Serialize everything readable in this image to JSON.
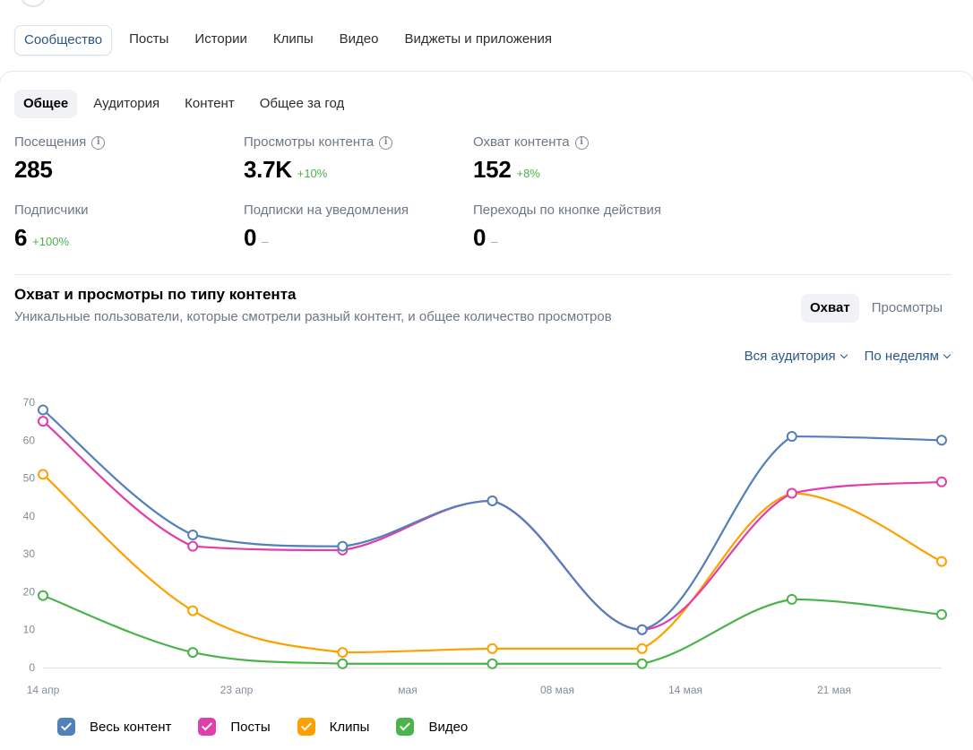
{
  "top_tabs": [
    "Сообщество",
    "Посты",
    "Истории",
    "Клипы",
    "Видео",
    "Виджеты и приложения"
  ],
  "sub_tabs": [
    "Общее",
    "Аудитория",
    "Контент",
    "Общее за год"
  ],
  "metrics": [
    {
      "label": "Посещения",
      "value": "285",
      "delta": "",
      "info": true
    },
    {
      "label": "Просмотры контента",
      "value": "3.7K",
      "delta": "+10%",
      "info": true
    },
    {
      "label": "Охват контента",
      "value": "152",
      "delta": "+8%",
      "info": true
    },
    {
      "label": "Подписчики",
      "value": "6",
      "delta": "+100%",
      "info": false
    },
    {
      "label": "Подписки на уведомления",
      "value": "0",
      "delta": "–",
      "info": false
    },
    {
      "label": "Переходы по кнопке действия",
      "value": "0",
      "delta": "–",
      "info": false
    }
  ],
  "chart_section": {
    "title": "Охват и просмотры по типу контента",
    "subtitle": "Уникальные пользователи, которые смотрели разный контент, и общее количество просмотров",
    "mode_buttons": [
      "Охват",
      "Просмотры"
    ],
    "audience_filter": "Вся аудитория",
    "period_filter": "По неделям"
  },
  "colors": {
    "all": "#5181b8",
    "posts": "#e03fab",
    "clips": "#ffa000",
    "video": "#4bb34b",
    "accent": "#2a5885"
  },
  "chart_data": {
    "type": "line",
    "x_tick_labels": [
      "14 апр",
      "23 апр",
      "мая",
      "08 мая",
      "14 мая",
      "21 мая"
    ],
    "ylim": [
      0,
      70
    ],
    "yticks": [
      0,
      10,
      20,
      30,
      40,
      50,
      60,
      70
    ],
    "grid": false,
    "legend_position": "bottom-left",
    "series": [
      {
        "name": "Весь контент",
        "color": "#5181b8",
        "values": [
          68,
          35,
          32,
          44,
          10,
          61,
          60
        ]
      },
      {
        "name": "Посты",
        "color": "#e03fab",
        "values": [
          65,
          32,
          31,
          44,
          10,
          46,
          49
        ]
      },
      {
        "name": "Клипы",
        "color": "#ffa000",
        "values": [
          51,
          15,
          4,
          5,
          5,
          46,
          28
        ]
      },
      {
        "name": "Видео",
        "color": "#4bb34b",
        "values": [
          19,
          4,
          1,
          1,
          1,
          18,
          14
        ]
      }
    ]
  }
}
